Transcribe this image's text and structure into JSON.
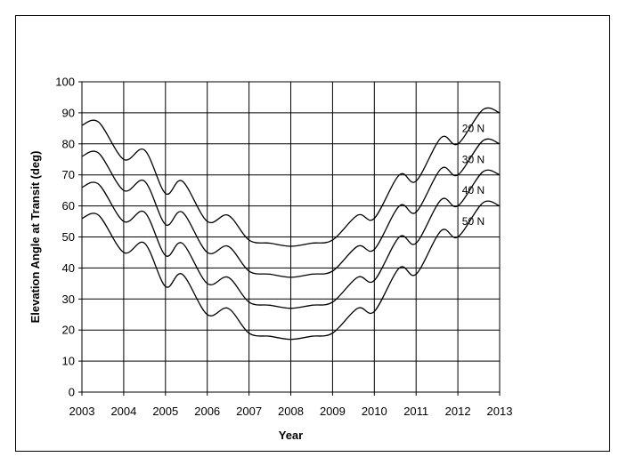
{
  "chart_data": {
    "type": "line",
    "title": "",
    "xlabel": "Year",
    "ylabel": "Elevation Angle at Transit (deg)",
    "xlim": [
      2003,
      2013
    ],
    "ylim": [
      0,
      100
    ],
    "x_ticks": [
      "2003",
      "2004",
      "2005",
      "2006",
      "2007",
      "2008",
      "2009",
      "2010",
      "2011",
      "2012",
      "2013"
    ],
    "y_ticks": [
      "0",
      "10",
      "20",
      "30",
      "40",
      "50",
      "60",
      "70",
      "80",
      "90",
      "100"
    ],
    "grid": true,
    "legend": "none",
    "line_color": "#000000",
    "x": [
      2003.0,
      2003.4,
      2004.0,
      2004.5,
      2005.0,
      2005.4,
      2006.0,
      2006.5,
      2007.0,
      2007.5,
      2008.0,
      2008.5,
      2009.0,
      2009.6,
      2010.0,
      2010.6,
      2011.0,
      2011.6,
      2012.0,
      2012.6,
      2013.0
    ],
    "series": [
      {
        "name": "20 N",
        "values": [
          86,
          87,
          75,
          78,
          64,
          68,
          55,
          57,
          49,
          48,
          47,
          48,
          49,
          57,
          56,
          70,
          68,
          82,
          80,
          91,
          90
        ]
      },
      {
        "name": "30 N",
        "values": [
          76,
          77,
          65,
          68,
          54,
          58,
          45,
          47,
          39,
          38,
          37,
          38,
          39,
          47,
          46,
          60,
          58,
          72,
          70,
          81,
          80
        ]
      },
      {
        "name": "40 N",
        "values": [
          66,
          67,
          55,
          58,
          44,
          48,
          35,
          37,
          29,
          28,
          27,
          28,
          29,
          37,
          36,
          50,
          48,
          62,
          60,
          71,
          70
        ]
      },
      {
        "name": "50 N",
        "values": [
          56,
          57,
          45,
          48,
          34,
          38,
          25,
          27,
          19,
          18,
          17,
          18,
          19,
          27,
          26,
          40,
          38,
          52,
          50,
          61,
          60
        ]
      }
    ],
    "series_label_positions": [
      {
        "name": "20 N",
        "x": 2012.1,
        "y": 85
      },
      {
        "name": "30 N",
        "x": 2012.1,
        "y": 75
      },
      {
        "name": "40 N",
        "x": 2012.1,
        "y": 65
      },
      {
        "name": "50 N",
        "x": 2012.1,
        "y": 55
      }
    ]
  }
}
